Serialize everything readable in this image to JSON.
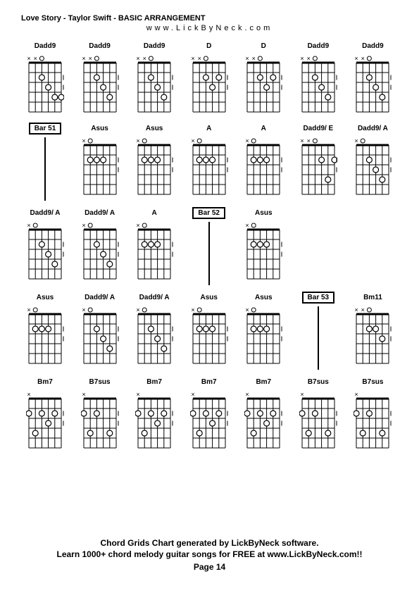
{
  "title": "Love Story - Taylor Swift - BASIC ARRANGEMENT",
  "subtitle": "www.LickByNeck.com",
  "footer_line1": "Chord Grids Chart generated by LickByNeck software.",
  "footer_line2": "Learn 1000+ chord melody guitar songs for FREE at www.LickByNeck.com!!",
  "page_label": "Page 14",
  "diagram_style": {
    "width": 54,
    "height": 90,
    "strings": 6,
    "frets": 5,
    "line_color": "#000000",
    "dot_fill": "#ffffff",
    "dot_stroke": "#000000"
  },
  "rows": [
    [
      {
        "type": "chord",
        "label": "Dadd9",
        "markers": "xxo",
        "dots": [
          [
            2,
            3
          ],
          [
            3,
            2
          ],
          [
            4,
            1
          ],
          [
            4,
            0
          ]
        ]
      },
      {
        "type": "chord",
        "label": "Dadd9",
        "markers": "xxo",
        "dots": [
          [
            2,
            3
          ],
          [
            3,
            2
          ],
          [
            4,
            1
          ]
        ]
      },
      {
        "type": "chord",
        "label": "Dadd9",
        "markers": "xxo",
        "dots": [
          [
            2,
            3
          ],
          [
            3,
            2
          ],
          [
            4,
            1
          ]
        ]
      },
      {
        "type": "chord",
        "label": "D",
        "markers": "xxo",
        "dots": [
          [
            2,
            3
          ],
          [
            3,
            2
          ],
          [
            2,
            1
          ]
        ]
      },
      {
        "type": "chord",
        "label": "D",
        "markers": "xxo",
        "dots": [
          [
            2,
            3
          ],
          [
            3,
            2
          ],
          [
            2,
            1
          ]
        ]
      },
      {
        "type": "chord",
        "label": "Dadd9",
        "markers": "xxo",
        "dots": [
          [
            2,
            3
          ],
          [
            3,
            2
          ],
          [
            4,
            1
          ]
        ]
      },
      {
        "type": "chord",
        "label": "Dadd9",
        "markers": "xxo",
        "dots": [
          [
            2,
            3
          ],
          [
            3,
            2
          ],
          [
            4,
            1
          ]
        ]
      }
    ],
    [
      {
        "type": "bar",
        "label": "Bar 51"
      },
      {
        "type": "chord",
        "label": "Asus",
        "markers": "xo",
        "dots": [
          [
            2,
            4
          ],
          [
            2,
            3
          ],
          [
            2,
            2
          ]
        ]
      },
      {
        "type": "chord",
        "label": "Asus",
        "markers": "xo",
        "dots": [
          [
            2,
            4
          ],
          [
            2,
            3
          ],
          [
            2,
            2
          ]
        ]
      },
      {
        "type": "chord",
        "label": "A",
        "markers": "xo",
        "dots": [
          [
            2,
            4
          ],
          [
            2,
            3
          ],
          [
            2,
            2
          ]
        ]
      },
      {
        "type": "chord",
        "label": "A",
        "markers": "xo",
        "dots": [
          [
            2,
            4
          ],
          [
            2,
            3
          ],
          [
            2,
            2
          ]
        ]
      },
      {
        "type": "chord",
        "label": "Dadd9/ E",
        "markers": "xxo",
        "dots": [
          [
            2,
            2
          ],
          [
            4,
            1
          ],
          [
            2,
            0
          ]
        ]
      },
      {
        "type": "chord",
        "label": "Dadd9/ A",
        "markers": "xo",
        "dots": [
          [
            2,
            3
          ],
          [
            3,
            2
          ],
          [
            4,
            1
          ]
        ]
      }
    ],
    [
      {
        "type": "chord",
        "label": "Dadd9/ A",
        "markers": "xo",
        "dots": [
          [
            2,
            3
          ],
          [
            3,
            2
          ],
          [
            4,
            1
          ]
        ]
      },
      {
        "type": "chord",
        "label": "Dadd9/ A",
        "markers": "xo",
        "dots": [
          [
            2,
            3
          ],
          [
            3,
            2
          ],
          [
            4,
            1
          ]
        ]
      },
      {
        "type": "chord",
        "label": "A",
        "markers": "xo",
        "dots": [
          [
            2,
            4
          ],
          [
            2,
            3
          ],
          [
            2,
            2
          ]
        ]
      },
      {
        "type": "bar",
        "label": "Bar 52"
      },
      {
        "type": "chord",
        "label": "Asus",
        "markers": "xo",
        "dots": [
          [
            2,
            4
          ],
          [
            2,
            3
          ],
          [
            2,
            2
          ]
        ]
      },
      {
        "type": "empty"
      },
      {
        "type": "empty"
      }
    ],
    [
      {
        "type": "chord",
        "label": "Asus",
        "markers": "xo",
        "dots": [
          [
            2,
            4
          ],
          [
            2,
            3
          ],
          [
            2,
            2
          ]
        ]
      },
      {
        "type": "chord",
        "label": "Dadd9/ A",
        "markers": "xo",
        "dots": [
          [
            2,
            3
          ],
          [
            3,
            2
          ],
          [
            4,
            1
          ]
        ]
      },
      {
        "type": "chord",
        "label": "Dadd9/ A",
        "markers": "xo",
        "dots": [
          [
            2,
            3
          ],
          [
            3,
            2
          ],
          [
            4,
            1
          ]
        ]
      },
      {
        "type": "chord",
        "label": "Asus",
        "markers": "xo",
        "dots": [
          [
            2,
            4
          ],
          [
            2,
            3
          ],
          [
            2,
            2
          ]
        ]
      },
      {
        "type": "chord",
        "label": "Asus",
        "markers": "xo",
        "dots": [
          [
            2,
            4
          ],
          [
            2,
            3
          ],
          [
            2,
            2
          ]
        ]
      },
      {
        "type": "bar",
        "label": "Bar 53"
      },
      {
        "type": "chord",
        "label": "Bm11",
        "markers": "xxo",
        "dots": [
          [
            2,
            3
          ],
          [
            2,
            2
          ],
          [
            3,
            1
          ]
        ]
      }
    ],
    [
      {
        "type": "chord",
        "label": "Bm7",
        "markers": "x",
        "dots": [
          [
            2,
            5
          ],
          [
            4,
            4
          ],
          [
            2,
            3
          ],
          [
            3,
            2
          ],
          [
            2,
            1
          ]
        ]
      },
      {
        "type": "chord",
        "label": "B7sus",
        "markers": "x",
        "dots": [
          [
            2,
            5
          ],
          [
            4,
            4
          ],
          [
            2,
            3
          ],
          [
            4,
            1
          ]
        ]
      },
      {
        "type": "chord",
        "label": "Bm7",
        "markers": "x",
        "dots": [
          [
            2,
            5
          ],
          [
            4,
            4
          ],
          [
            2,
            3
          ],
          [
            3,
            2
          ],
          [
            2,
            1
          ]
        ]
      },
      {
        "type": "chord",
        "label": "Bm7",
        "markers": "x",
        "dots": [
          [
            2,
            5
          ],
          [
            4,
            4
          ],
          [
            2,
            3
          ],
          [
            3,
            2
          ],
          [
            2,
            1
          ]
        ]
      },
      {
        "type": "chord",
        "label": "Bm7",
        "markers": "x",
        "dots": [
          [
            2,
            5
          ],
          [
            4,
            4
          ],
          [
            2,
            3
          ],
          [
            3,
            2
          ],
          [
            2,
            1
          ]
        ]
      },
      {
        "type": "chord",
        "label": "B7sus",
        "markers": "x",
        "dots": [
          [
            2,
            5
          ],
          [
            4,
            4
          ],
          [
            2,
            3
          ],
          [
            4,
            1
          ]
        ]
      },
      {
        "type": "chord",
        "label": "B7sus",
        "markers": "x",
        "dots": [
          [
            2,
            5
          ],
          [
            4,
            4
          ],
          [
            2,
            3
          ],
          [
            4,
            1
          ]
        ]
      }
    ]
  ]
}
